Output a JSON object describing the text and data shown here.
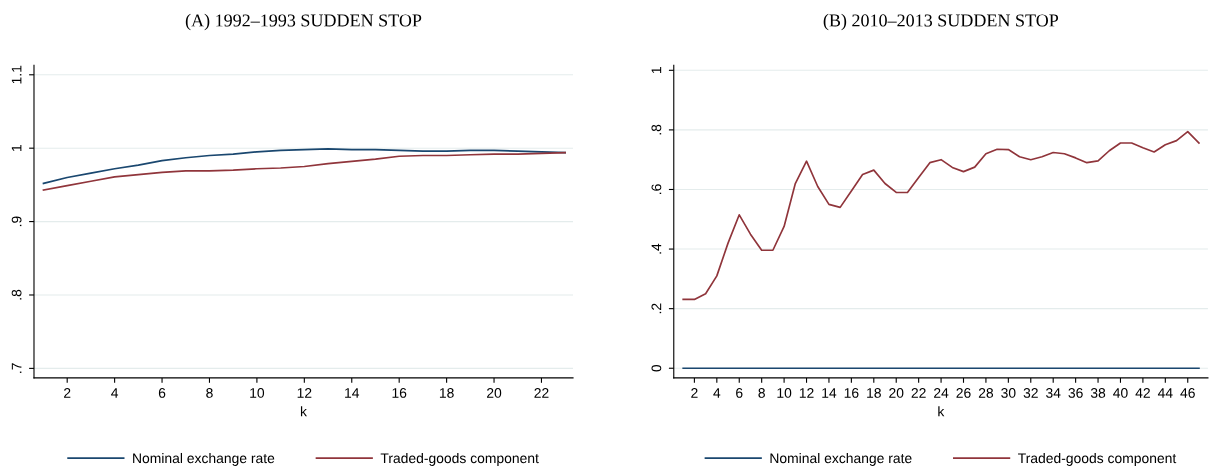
{
  "chart_data": [
    {
      "type": "line",
      "title": "(A) 1992–1993 SUDDEN STOP",
      "xlabel": "k",
      "x": [
        1,
        2,
        3,
        4,
        5,
        6,
        7,
        8,
        9,
        10,
        11,
        12,
        13,
        14,
        15,
        16,
        17,
        18,
        19,
        20,
        21,
        22,
        23
      ],
      "series": [
        {
          "name": "Nominal exchange rate",
          "color": "#1a476f",
          "values": [
            0.952,
            0.96,
            0.966,
            0.972,
            0.977,
            0.983,
            0.987,
            0.99,
            0.992,
            0.995,
            0.997,
            0.998,
            0.999,
            0.998,
            0.998,
            0.997,
            0.996,
            0.996,
            0.997,
            0.997,
            0.996,
            0.995,
            0.994
          ]
        },
        {
          "name": "Traded-goods component",
          "color": "#90353b",
          "values": [
            0.943,
            0.949,
            0.955,
            0.961,
            0.964,
            0.967,
            0.969,
            0.969,
            0.97,
            0.972,
            0.973,
            0.975,
            0.979,
            0.982,
            0.985,
            0.989,
            0.99,
            0.99,
            0.991,
            0.992,
            0.992,
            0.993,
            0.994
          ]
        }
      ],
      "xlim": [
        0.6,
        23.33
      ],
      "xticks": [
        2,
        4,
        6,
        8,
        10,
        12,
        14,
        16,
        18,
        20,
        22
      ],
      "ylim": [
        0.687,
        1.113
      ],
      "yticks": [
        {
          "value": 0.7,
          "label": ".7"
        },
        {
          "value": 0.8,
          "label": ".8"
        },
        {
          "value": 0.9,
          "label": ".9"
        },
        1,
        {
          "value": 1.1,
          "label": "1.1"
        }
      ],
      "grid": "y",
      "legend": "bottom",
      "line_style": "solid",
      "marker": "none"
    },
    {
      "type": "line",
      "title": "(B) 2010–2013 SUDDEN STOP",
      "xlabel": "k",
      "x": [
        1,
        2,
        3,
        4,
        5,
        6,
        7,
        8,
        9,
        10,
        11,
        12,
        13,
        14,
        15,
        16,
        17,
        18,
        19,
        20,
        21,
        22,
        23,
        24,
        25,
        26,
        27,
        28,
        29,
        30,
        31,
        32,
        33,
        34,
        35,
        36,
        37,
        38,
        39,
        40,
        41,
        42,
        43,
        44,
        45,
        46,
        47
      ],
      "series": [
        {
          "name": "Nominal exchange rate",
          "color": "#1a476f",
          "values": [
            0,
            0,
            0,
            0,
            0,
            0,
            0,
            0,
            0,
            0,
            0,
            0,
            0,
            0,
            0,
            0,
            0,
            0,
            0,
            0,
            0,
            0,
            0,
            0,
            0,
            0,
            0,
            0,
            0,
            0,
            0,
            0,
            0,
            0,
            0,
            0,
            0,
            0,
            0,
            0,
            0,
            0,
            0,
            0,
            0,
            0,
            0
          ]
        },
        {
          "name": "Traded-goods component",
          "color": "#90353b",
          "values": [
            0.231,
            0.231,
            0.25,
            0.31,
            0.42,
            0.515,
            0.45,
            0.396,
            0.396,
            0.476,
            0.62,
            0.695,
            0.61,
            0.55,
            0.54,
            0.595,
            0.65,
            0.665,
            0.62,
            0.59,
            0.59,
            0.64,
            0.69,
            0.7,
            0.674,
            0.66,
            0.675,
            0.72,
            0.735,
            0.734,
            0.71,
            0.7,
            0.71,
            0.724,
            0.72,
            0.706,
            0.69,
            0.696,
            0.73,
            0.756,
            0.756,
            0.74,
            0.726,
            0.75,
            0.764,
            0.794,
            0.756
          ]
        }
      ],
      "xlim": [
        0.16,
        47.8
      ],
      "xticks": [
        2,
        4,
        6,
        8,
        10,
        12,
        14,
        16,
        18,
        20,
        22,
        24,
        26,
        28,
        30,
        32,
        34,
        36,
        38,
        40,
        42,
        44,
        46
      ],
      "ylim": [
        -0.0325,
        1.017
      ],
      "yticks": [
        0,
        {
          "value": 0.2,
          "label": ".2"
        },
        {
          "value": 0.4,
          "label": ".4"
        },
        {
          "value": 0.6,
          "label": ".6"
        },
        {
          "value": 0.8,
          "label": ".8"
        },
        1
      ],
      "grid": "y",
      "legend": "bottom",
      "line_style": "solid",
      "marker": "none"
    }
  ]
}
